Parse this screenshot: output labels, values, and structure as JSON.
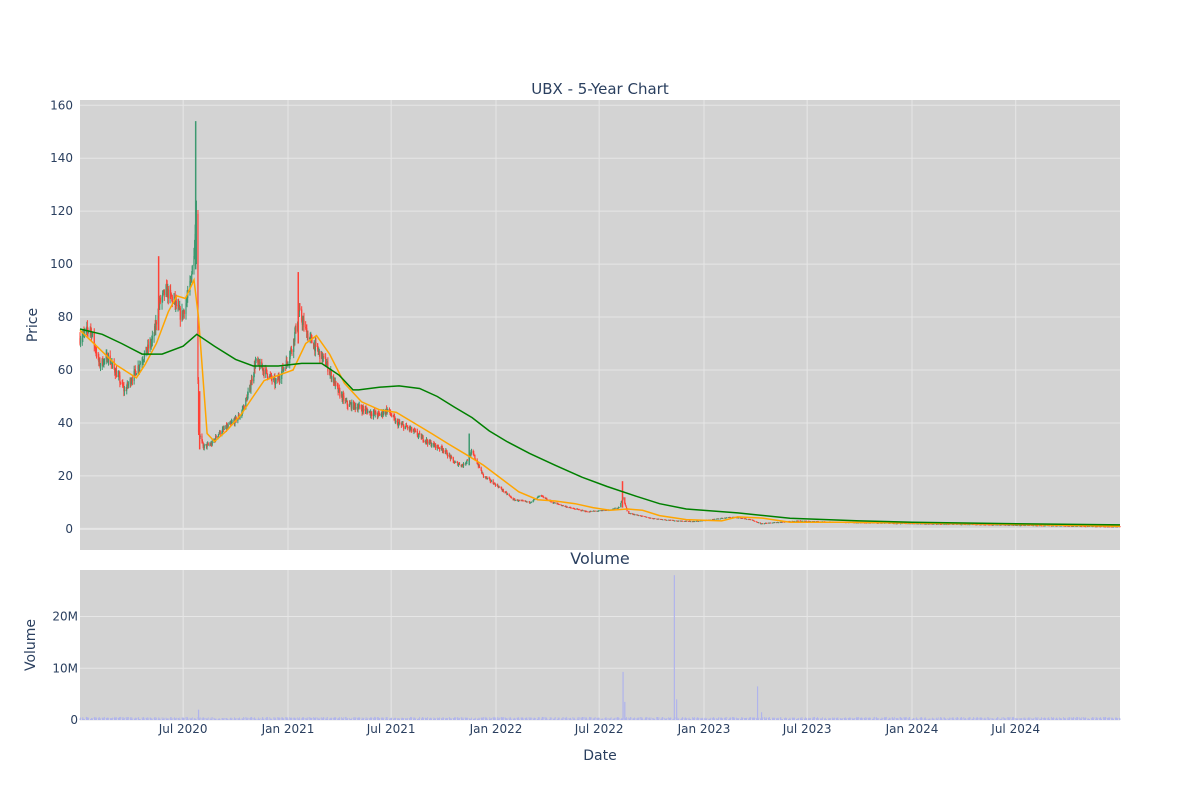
{
  "chart_data": [
    {
      "type": "candlestick",
      "title": "UBX - 5-Year Chart",
      "ylabel": "Price",
      "ylim": [
        -8,
        162
      ],
      "y_ticks": [
        0,
        20,
        40,
        60,
        80,
        100,
        120,
        140,
        160
      ],
      "x_ticks": [
        "Jul 2020",
        "Jan 2021",
        "Jul 2021",
        "Jan 2022",
        "Jul 2022",
        "Jan 2023",
        "Jul 2023",
        "Jan 2024",
        "Jul 2024"
      ],
      "xlim": [
        "2020-01-02",
        "2024-12-31"
      ],
      "grid": true,
      "colors": {
        "increasing": "#3d9970",
        "decreasing": "#ff4136",
        "plot_bg": "#d3d3d3",
        "grid": "#e6e6e6"
      },
      "price_path": [
        [
          "2020-01-02",
          72
        ],
        [
          "2020-01-20",
          76
        ],
        [
          "2020-02-05",
          62
        ],
        [
          "2020-02-20",
          65
        ],
        [
          "2020-03-10",
          57
        ],
        [
          "2020-03-20",
          52
        ],
        [
          "2020-04-05",
          58
        ],
        [
          "2020-04-25",
          66
        ],
        [
          "2020-05-10",
          72
        ],
        [
          "2020-05-20",
          85
        ],
        [
          "2020-06-01",
          90
        ],
        [
          "2020-06-15",
          86
        ],
        [
          "2020-06-28",
          80
        ],
        [
          "2020-07-10",
          88
        ],
        [
          "2020-07-18",
          100
        ],
        [
          "2020-07-24",
          118
        ],
        [
          "2020-07-28",
          37
        ],
        [
          "2020-08-05",
          31
        ],
        [
          "2020-08-20",
          32
        ],
        [
          "2020-09-01",
          36
        ],
        [
          "2020-09-20",
          39
        ],
        [
          "2020-10-10",
          43
        ],
        [
          "2020-10-25",
          52
        ],
        [
          "2020-11-05",
          63
        ],
        [
          "2020-11-20",
          60
        ],
        [
          "2020-12-10",
          55
        ],
        [
          "2020-12-30",
          63
        ],
        [
          "2021-01-10",
          70
        ],
        [
          "2021-01-20",
          82
        ],
        [
          "2021-02-05",
          73
        ],
        [
          "2021-02-20",
          68
        ],
        [
          "2021-03-10",
          62
        ],
        [
          "2021-03-30",
          52
        ],
        [
          "2021-04-15",
          47
        ],
        [
          "2021-05-05",
          46
        ],
        [
          "2021-05-25",
          44
        ],
        [
          "2021-06-10",
          43
        ],
        [
          "2021-06-25",
          45
        ],
        [
          "2021-07-10",
          40
        ],
        [
          "2021-08-01",
          38
        ],
        [
          "2021-08-20",
          35
        ],
        [
          "2021-09-10",
          32
        ],
        [
          "2021-10-01",
          30
        ],
        [
          "2021-10-20",
          25
        ],
        [
          "2021-11-05",
          24
        ],
        [
          "2021-11-20",
          29
        ],
        [
          "2021-12-10",
          20
        ],
        [
          "2022-01-05",
          16
        ],
        [
          "2022-02-01",
          11
        ],
        [
          "2022-03-01",
          10
        ],
        [
          "2022-03-20",
          12.5
        ],
        [
          "2022-04-10",
          10
        ],
        [
          "2022-05-10",
          8
        ],
        [
          "2022-06-10",
          6.5
        ],
        [
          "2022-07-15",
          7
        ],
        [
          "2022-08-05",
          8
        ],
        [
          "2022-08-12",
          12
        ],
        [
          "2022-08-20",
          6
        ],
        [
          "2022-10-01",
          4
        ],
        [
          "2022-11-15",
          3
        ],
        [
          "2022-12-15",
          2.8
        ],
        [
          "2023-01-15",
          3.5
        ],
        [
          "2023-02-20",
          4.5
        ],
        [
          "2023-03-25",
          3.5
        ],
        [
          "2023-04-10",
          2
        ],
        [
          "2023-06-15",
          3
        ],
        [
          "2023-09-01",
          2.5
        ],
        [
          "2024-01-01",
          2
        ],
        [
          "2024-06-01",
          1.5
        ],
        [
          "2024-12-31",
          0.8
        ]
      ],
      "series": [
        {
          "name": "",
          "type": "line",
          "color": "#ffa500",
          "x": [
            "2020-01-02",
            "2020-02-05",
            "2020-03-05",
            "2020-04-10",
            "2020-04-25",
            "2020-05-15",
            "2020-06-05",
            "2020-06-20",
            "2020-07-05",
            "2020-07-20",
            "2020-07-28",
            "2020-08-12",
            "2020-08-25",
            "2020-09-15",
            "2020-10-10",
            "2020-11-01",
            "2020-11-20",
            "2020-12-15",
            "2021-01-10",
            "2021-02-01",
            "2021-02-20",
            "2021-03-15",
            "2021-04-10",
            "2021-05-10",
            "2021-06-10",
            "2021-07-10",
            "2021-08-10",
            "2021-09-10",
            "2021-10-10",
            "2021-11-10",
            "2021-12-10",
            "2022-01-10",
            "2022-02-10",
            "2022-03-15",
            "2022-04-15",
            "2022-05-20",
            "2022-06-20",
            "2022-07-20",
            "2022-08-20",
            "2022-09-15",
            "2022-10-15",
            "2022-12-01",
            "2023-02-01",
            "2023-03-01",
            "2023-04-15",
            "2023-06-01",
            "2023-09-01",
            "2024-01-01",
            "2024-06-01",
            "2024-12-31"
          ],
          "y": [
            75,
            68,
            62,
            57,
            62,
            70,
            82,
            88,
            87,
            94,
            80,
            36,
            33,
            37,
            43,
            50,
            56,
            58,
            60,
            70,
            73,
            66,
            55,
            48,
            45,
            44,
            40,
            36,
            32,
            28,
            24,
            19,
            14,
            11,
            10.5,
            9.5,
            8,
            7,
            7.5,
            7,
            5,
            3.5,
            3,
            4.5,
            4,
            2.5,
            2.5,
            2.2,
            1.8,
            1
          ]
        },
        {
          "name": "",
          "type": "line",
          "color": "#008000",
          "x": [
            "2020-01-02",
            "2020-02-10",
            "2020-03-15",
            "2020-04-20",
            "2020-05-25",
            "2020-07-01",
            "2020-07-25",
            "2020-08-25",
            "2020-10-01",
            "2020-11-01",
            "2020-12-15",
            "2021-01-25",
            "2021-03-01",
            "2021-04-01",
            "2021-04-25",
            "2021-05-05",
            "2021-06-10",
            "2021-07-15",
            "2021-08-20",
            "2021-09-20",
            "2021-10-20",
            "2021-11-20",
            "2021-12-20",
            "2022-01-20",
            "2022-03-01",
            "2022-04-15",
            "2022-06-01",
            "2022-07-15",
            "2022-09-01",
            "2022-10-15",
            "2022-12-01",
            "2023-03-01",
            "2023-06-01",
            "2023-10-01",
            "2024-01-01",
            "2024-06-01",
            "2024-12-31"
          ],
          "y": [
            75.5,
            73.5,
            70,
            66,
            66,
            69,
            73.5,
            69,
            64,
            61.5,
            61.5,
            62.5,
            62.5,
            58,
            52.5,
            52.5,
            53.5,
            54,
            53,
            50,
            46,
            42,
            37,
            33,
            28.5,
            24,
            19.5,
            16,
            12.5,
            9.5,
            7.5,
            6,
            4,
            3,
            2.5,
            2,
            1.5
          ]
        }
      ]
    },
    {
      "type": "bar",
      "title": "Volume",
      "xlabel": "Date",
      "ylabel": "Volume",
      "ylim": [
        0,
        29000000
      ],
      "y_ticks": [
        {
          "value": 0,
          "label": "0"
        },
        {
          "value": 10000000,
          "label": "10M"
        },
        {
          "value": 20000000,
          "label": "20M"
        }
      ],
      "x_ticks": [
        "Jul 2020",
        "Jan 2021",
        "Jul 2021",
        "Jan 2022",
        "Jul 2022",
        "Jan 2023",
        "Jul 2023",
        "Jan 2024",
        "Jul 2024"
      ],
      "xlim": [
        "2020-01-02",
        "2024-12-31"
      ],
      "grid": true,
      "color": "#b0b4ec",
      "spikes": [
        [
          "2020-07-28",
          2000000
        ],
        [
          "2022-08-12",
          9300000
        ],
        [
          "2022-08-15",
          3500000
        ],
        [
          "2022-11-10",
          28000000
        ],
        [
          "2022-11-14",
          4000000
        ],
        [
          "2023-04-05",
          6500000
        ],
        [
          "2023-04-12",
          1500000
        ]
      ]
    }
  ]
}
